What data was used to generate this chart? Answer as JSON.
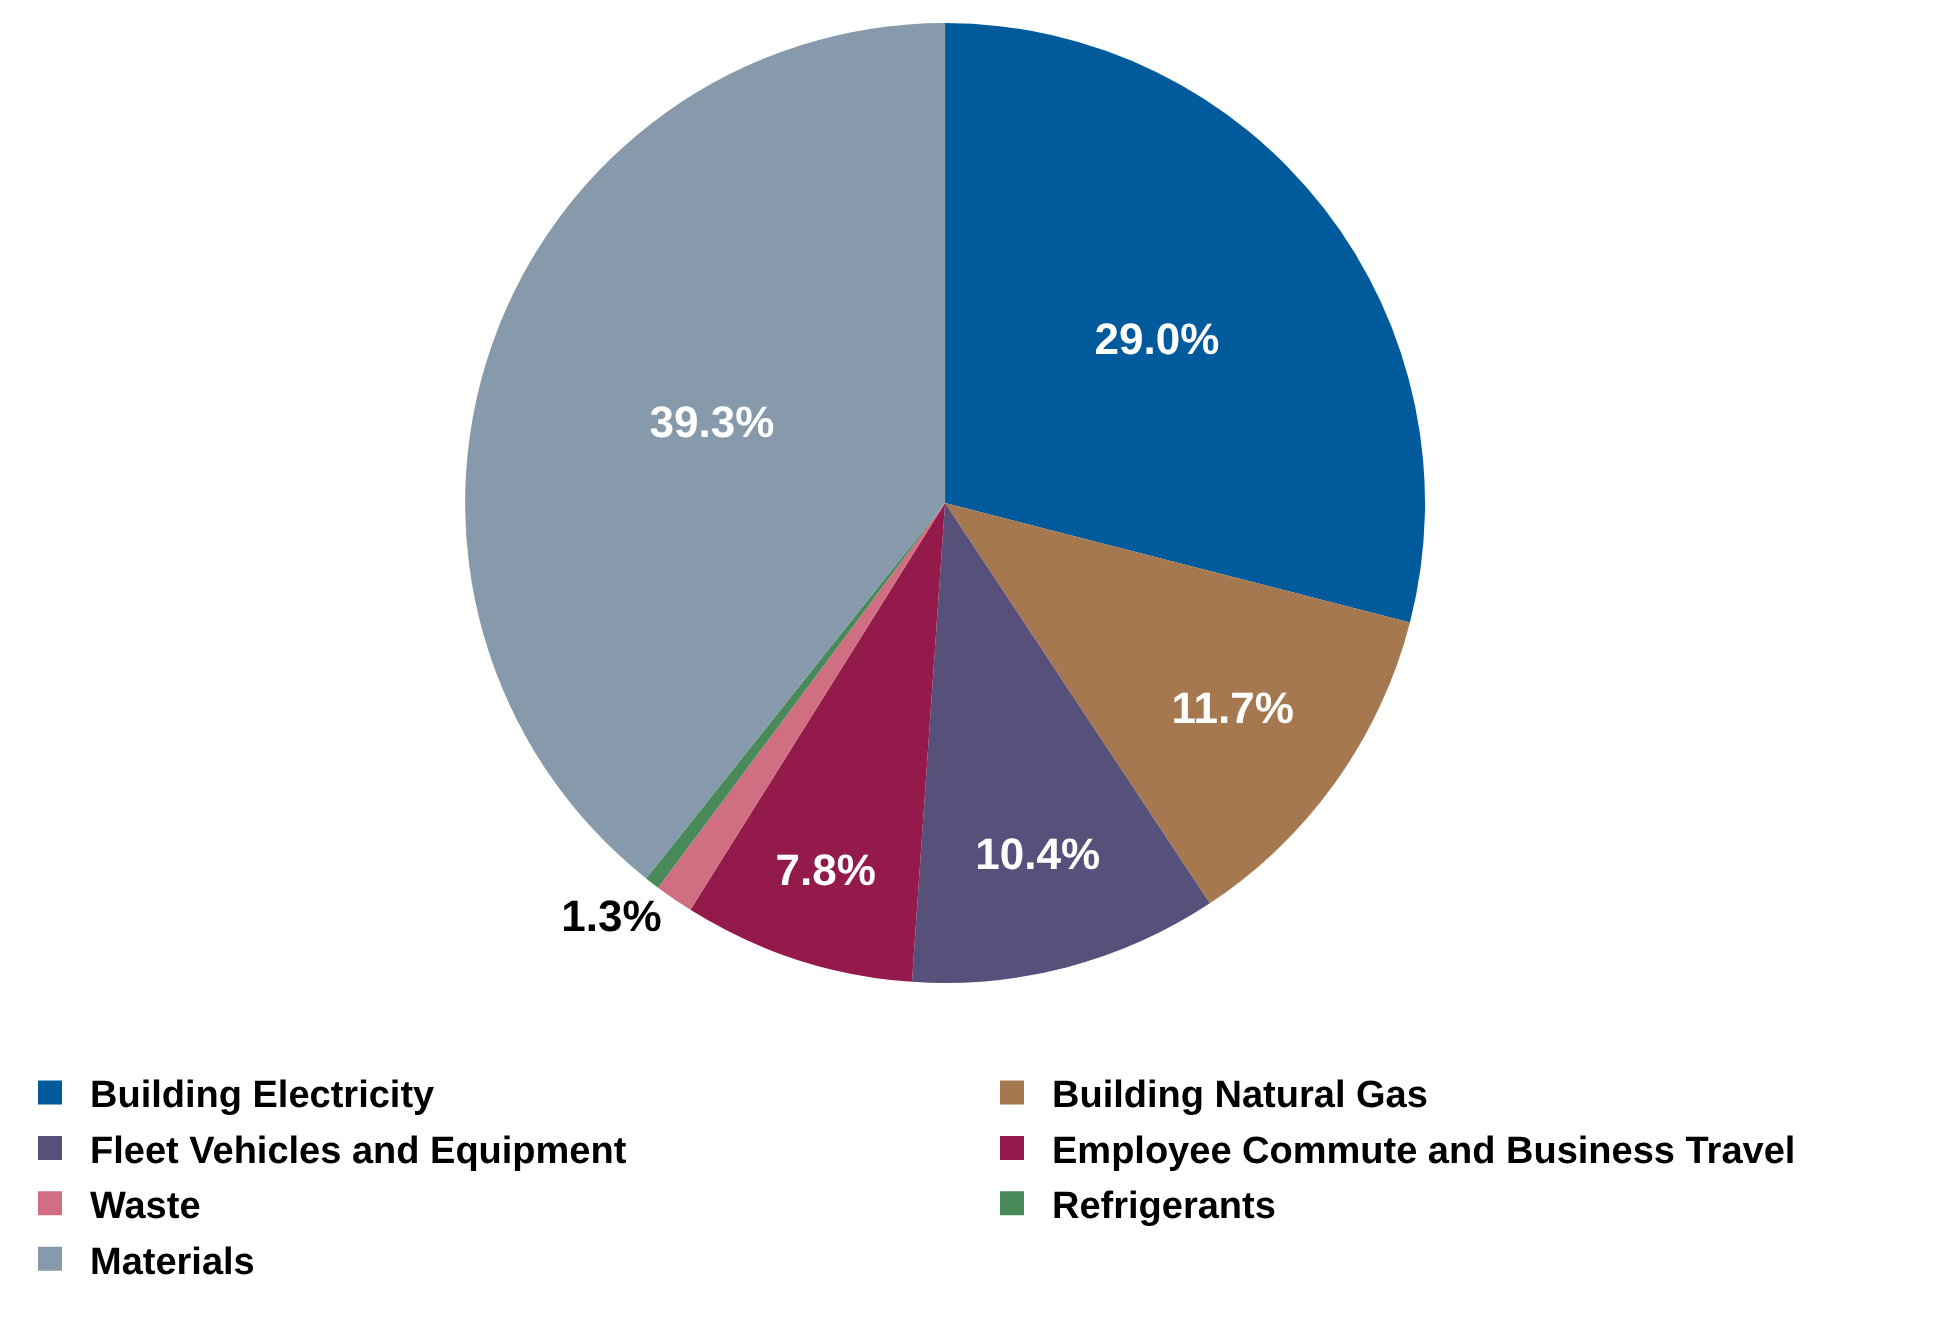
{
  "chart_data": {
    "type": "pie",
    "categories": [
      "Building Electricity",
      "Building Natural Gas",
      "Fleet Vehicles and Equipment",
      "Employee Commute and Business Travel",
      "Waste",
      "Refrigerants",
      "Materials"
    ],
    "values": [
      29.0,
      11.7,
      10.4,
      7.8,
      1.3,
      0.5,
      39.3
    ],
    "value_labels": [
      "29.0%",
      "11.7%",
      "10.4%",
      "7.8%",
      "1.3%",
      null,
      "39.3%"
    ],
    "colors": [
      "#005a9c",
      "#a57850",
      "#57507a",
      "#931a4a",
      "#d06e82",
      "#4a8a5a",
      "#879aac"
    ],
    "legend": "bottom"
  }
}
